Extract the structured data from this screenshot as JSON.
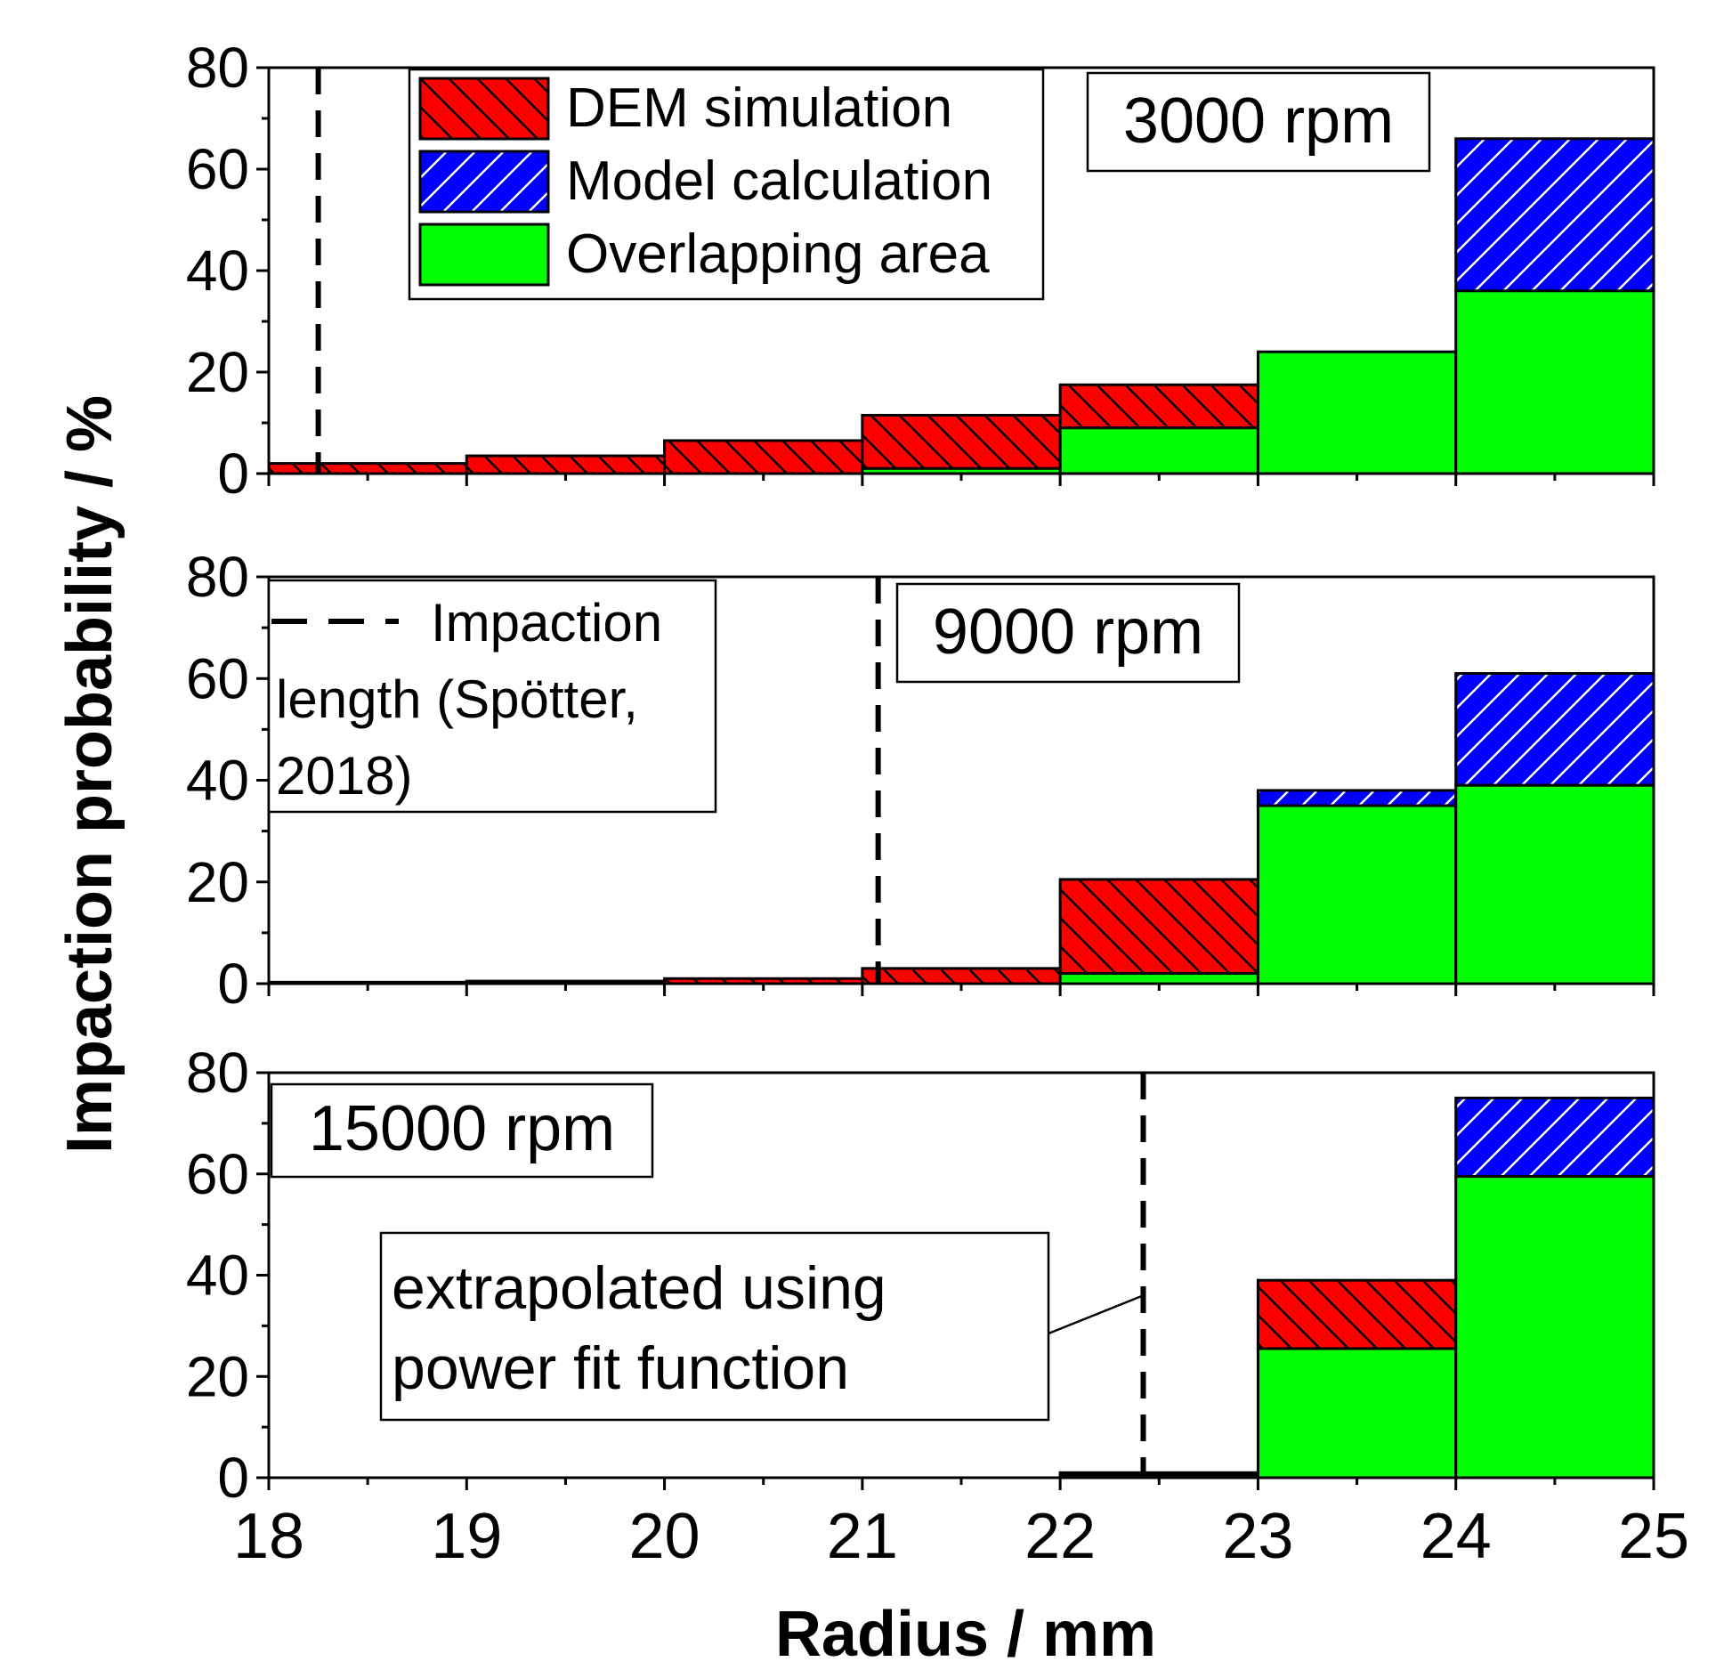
{
  "chart_data": {
    "type": "bar",
    "x_label": "Radius / mm",
    "y_label": "Impaction probability / %",
    "x_ticks": [
      "18",
      "19",
      "20",
      "21",
      "22",
      "23",
      "24",
      "25"
    ],
    "x_range": [
      18,
      25
    ],
    "y_ticks": [
      "0",
      "20",
      "40",
      "60",
      "80"
    ],
    "y_range": [
      0,
      80
    ],
    "bin_edges": [
      18,
      19,
      20,
      21,
      22,
      23,
      24,
      25
    ],
    "legend": {
      "placement": "top-center of first panel",
      "entries": [
        {
          "key": "dem",
          "label": "DEM simulation",
          "color": "#ff0000",
          "hatch": "back-diagonal"
        },
        {
          "key": "model",
          "label": "Model calculation",
          "color": "#0000ff",
          "hatch": "forward-diagonal white"
        },
        {
          "key": "overlap",
          "label": "Overlapping area",
          "color": "#00ff00",
          "hatch": "none"
        }
      ]
    },
    "impaction_legend": {
      "placement": "top-left of second panel",
      "lines": [
        "Impaction",
        "length (Spötter,",
        "2018)"
      ]
    },
    "panels": [
      {
        "name": "3000 rpm",
        "label": "3000 rpm",
        "dem": [
          2.0,
          3.5,
          6.5,
          11.5,
          17.5,
          24.0,
          36.0
        ],
        "model": [
          0.0,
          0.0,
          0.0,
          1.0,
          9.0,
          24.0,
          66.0
        ],
        "impaction_length_mm": 18.25
      },
      {
        "name": "9000 rpm",
        "label": "9000 rpm",
        "dem": [
          0.3,
          0.5,
          1.0,
          3.0,
          20.5,
          35.0,
          39.0
        ],
        "model": [
          0.0,
          0.0,
          0.0,
          0.0,
          2.0,
          38.0,
          61.0
        ],
        "impaction_length_mm": 21.08
      },
      {
        "name": "15000 rpm",
        "label": "15000 rpm",
        "dem": [
          0.0,
          0.0,
          0.0,
          0.0,
          1.0,
          39.0,
          59.5
        ],
        "model": [
          0.0,
          0.0,
          0.0,
          0.0,
          0.5,
          25.5,
          75.0
        ],
        "impaction_length_mm": 22.42,
        "annotation": {
          "lines": [
            "extrapolated using",
            "power fit function"
          ],
          "points_to_y": 36,
          "placement": "center-left"
        }
      }
    ]
  }
}
